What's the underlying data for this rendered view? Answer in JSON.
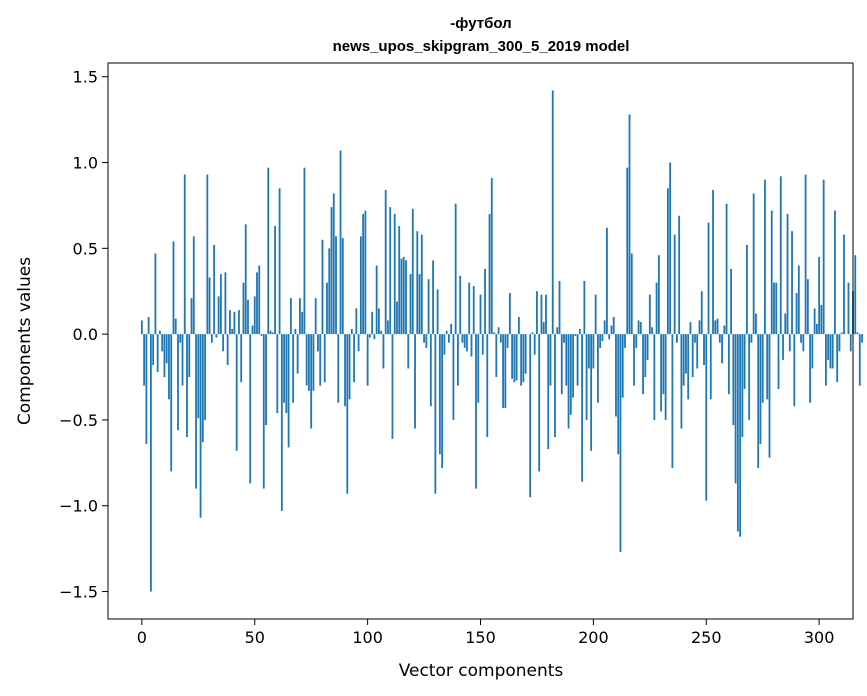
{
  "chart_data": {
    "type": "bar",
    "title": "-футбол",
    "subtitle": "news_upos_skipgram_300_5_2019 model",
    "xlabel": "Vector components",
    "ylabel": "Components values",
    "xlim": [
      -15,
      315
    ],
    "ylim": [
      -1.66,
      1.58
    ],
    "xticks": [
      0,
      50,
      100,
      150,
      200,
      250,
      300
    ],
    "xtick_labels": [
      "0",
      "50",
      "100",
      "150",
      "200",
      "250",
      "300"
    ],
    "yticks": [
      -1.5,
      -1.0,
      -0.5,
      0.0,
      0.5,
      1.0,
      1.5
    ],
    "ytick_labels": [
      "−1.5",
      "−1.0",
      "−0.5",
      "0.0",
      "0.5",
      "1.0",
      "1.5"
    ],
    "bar_color": "#1f77b4",
    "grid": false,
    "values": [
      0.08,
      -0.3,
      -0.64,
      0.1,
      -1.5,
      -0.18,
      0.47,
      -0.22,
      0.02,
      -0.1,
      -0.25,
      -0.17,
      -0.38,
      -0.8,
      0.54,
      0.09,
      -0.56,
      -0.05,
      -0.3,
      0.93,
      -0.6,
      -0.25,
      0.21,
      0.57,
      -0.9,
      -0.49,
      -1.07,
      -0.63,
      -0.5,
      0.93,
      0.33,
      -0.05,
      0.52,
      -0.02,
      0.22,
      0.35,
      -0.1,
      0.36,
      -0.18,
      0.14,
      0.03,
      0.13,
      -0.68,
      0.14,
      -0.28,
      0.3,
      0.64,
      0.2,
      -0.87,
      0.05,
      0.22,
      0.36,
      0.4,
      -0.01,
      -0.9,
      -0.53,
      0.97,
      0.02,
      0.01,
      0.63,
      -0.46,
      0.85,
      -1.03,
      -0.4,
      -0.46,
      -0.66,
      0.21,
      -0.4,
      0.03,
      -0.23,
      0.21,
      0.13,
      0.97,
      -0.3,
      -0.33,
      -0.55,
      -0.33,
      0.21,
      -0.1,
      -0.3,
      0.55,
      -0.28,
      0.3,
      0.5,
      0.74,
      0.82,
      0.57,
      -0.4,
      1.07,
      0.56,
      -0.42,
      -0.93,
      -0.38,
      0.03,
      -0.28,
      0.15,
      -0.1,
      0.57,
      0.7,
      0.72,
      -0.3,
      -0.02,
      0.13,
      -0.03,
      0.4,
      0.15,
      0.02,
      -0.2,
      0.84,
      0.08,
      0.74,
      -0.61,
      0.7,
      0.19,
      0.63,
      0.44,
      0.45,
      0.43,
      -0.2,
      0.35,
      0.73,
      -0.55,
      0.6,
      0.35,
      0.58,
      -0.05,
      -0.08,
      0.32,
      -0.42,
      0.43,
      -0.93,
      0.26,
      -0.7,
      -0.78,
      -0.12,
      0.02,
      -0.05,
      0.06,
      -0.5,
      0.76,
      -0.3,
      0.34,
      -0.05,
      -0.08,
      -0.1,
      0.3,
      -0.13,
      0.28,
      -0.9,
      -0.4,
      0.23,
      -0.12,
      0.38,
      -0.6,
      0.7,
      0.91,
      0.01,
      -0.25,
      0.04,
      -0.05,
      -0.43,
      -0.43,
      -0.08,
      0.24,
      -0.26,
      -0.28,
      -0.27,
      0.1,
      -0.3,
      -0.28,
      -0.23,
      0.0,
      -0.95,
      0.01,
      -0.12,
      0.25,
      -0.8,
      0.23,
      0.07,
      0.23,
      -0.67,
      -0.3,
      1.42,
      -0.6,
      0.04,
      0.31,
      -0.35,
      -0.05,
      -0.3,
      -0.55,
      -0.47,
      -0.37,
      -0.01,
      -0.3,
      0.03,
      -0.86,
      0.31,
      -0.5,
      -0.2,
      -0.68,
      -0.2,
      0.23,
      -0.4,
      -0.08,
      -0.04,
      0.08,
      0.62,
      -0.03,
      0.05,
      0.1,
      -0.48,
      -0.7,
      -1.27,
      -0.37,
      -0.08,
      0.97,
      1.28,
      0.47,
      -0.3,
      -0.08,
      0.08,
      0.07,
      -0.35,
      -0.25,
      -0.15,
      0.23,
      0.04,
      -0.5,
      0.3,
      0.46,
      -0.45,
      -0.35,
      -0.5,
      0.85,
      1.0,
      -0.78,
      0.58,
      -0.05,
      0.69,
      -0.55,
      -0.3,
      -0.23,
      -0.38,
      0.07,
      -0.25,
      -0.05,
      -0.2,
      0.08,
      0.25,
      -0.18,
      -0.97,
      0.65,
      -0.38,
      0.84,
      0.08,
      0.09,
      -0.05,
      -0.17,
      0.05,
      0.76,
      -0.35,
      0.38,
      -0.53,
      -0.87,
      -1.15,
      -1.18,
      -0.6,
      -0.32,
      0.52,
      -0.5,
      -0.05,
      0.82,
      0.12,
      -0.78,
      -0.64,
      -0.4,
      0.9,
      -0.38,
      -0.72,
      0.72,
      0.3,
      0.3,
      -0.32,
      0.92,
      -0.15,
      0.12,
      0.7,
      -0.1,
      0.6,
      -0.42,
      0.24,
      0.4,
      -0.05,
      -0.1,
      0.93,
      0.32,
      -0.4,
      -0.2,
      0.15,
      0.06,
      0.45,
      0.17,
      0.9,
      -0.3,
      -0.15,
      -0.2,
      -0.2,
      0.72,
      -0.28,
      -0.1,
      0.01,
      0.58,
      0.0,
      0.3,
      -0.1,
      0.25,
      0.46,
      0.01,
      -0.3,
      -0.05
    ]
  }
}
